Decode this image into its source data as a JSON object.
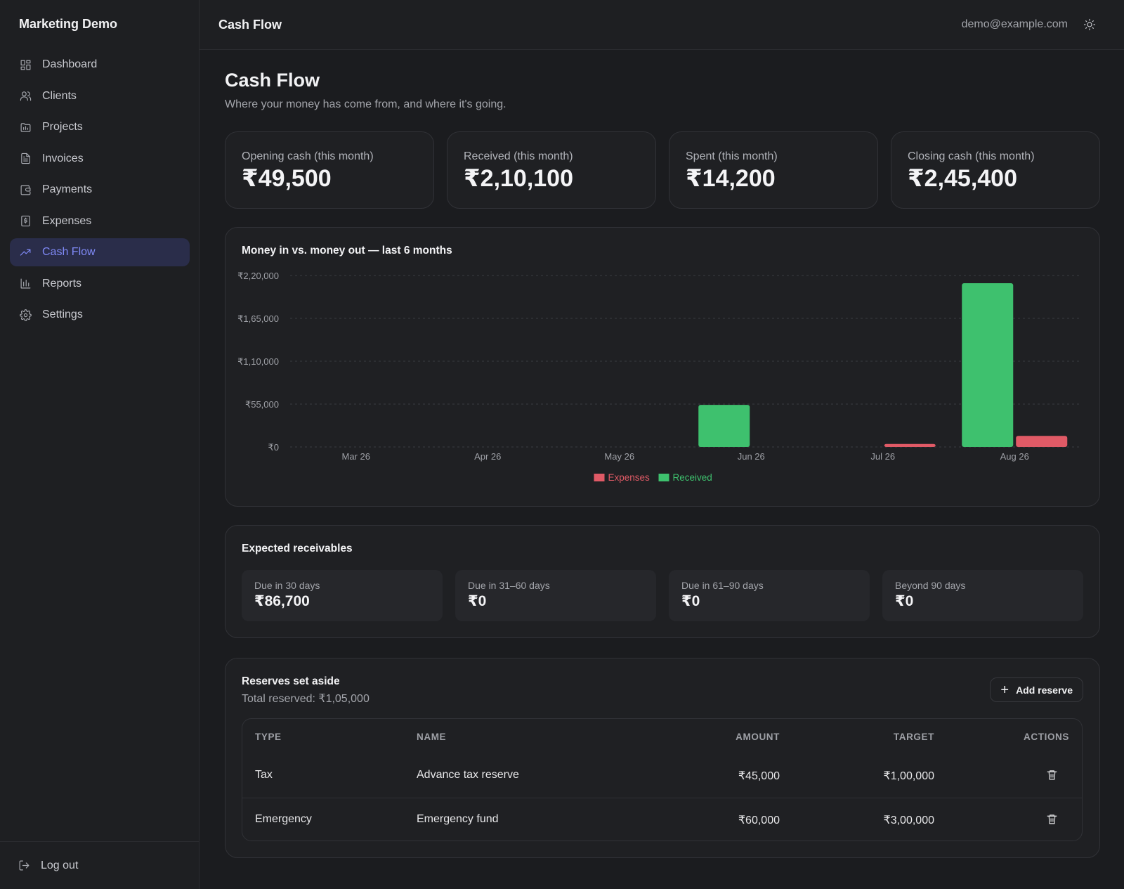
{
  "app": {
    "brand": "Marketing Demo"
  },
  "sidebar": {
    "items": [
      {
        "label": "Dashboard",
        "icon": "dashboard-icon"
      },
      {
        "label": "Clients",
        "icon": "users-icon"
      },
      {
        "label": "Projects",
        "icon": "folder-icon"
      },
      {
        "label": "Invoices",
        "icon": "file-text-icon"
      },
      {
        "label": "Payments",
        "icon": "wallet-icon"
      },
      {
        "label": "Expenses",
        "icon": "receipt-icon"
      },
      {
        "label": "Cash Flow",
        "icon": "trending-up-icon",
        "active": true
      },
      {
        "label": "Reports",
        "icon": "bar-chart-icon"
      },
      {
        "label": "Settings",
        "icon": "gear-icon"
      }
    ],
    "logout_label": "Log out"
  },
  "topbar": {
    "title": "Cash Flow",
    "email": "demo@example.com"
  },
  "page": {
    "title": "Cash Flow",
    "subtitle": "Where your money has come from, and where it's going."
  },
  "stats": [
    {
      "label": "Opening cash (this month)",
      "value": "₹49,500"
    },
    {
      "label": "Received (this month)",
      "value": "₹2,10,100"
    },
    {
      "label": "Spent (this month)",
      "value": "₹14,200"
    },
    {
      "label": "Closing cash (this month)",
      "value": "₹2,45,400"
    }
  ],
  "chart_data": {
    "type": "bar",
    "title": "Money in vs. money out — last 6 months",
    "categories": [
      "Mar 26",
      "Apr 26",
      "May 26",
      "Jun 26",
      "Jul 26",
      "Aug 26"
    ],
    "series": [
      {
        "name": "Expenses",
        "color": "#e05a66",
        "values": [
          0,
          0,
          0,
          0,
          3800,
          14200
        ]
      },
      {
        "name": "Received",
        "color": "#3ec16e",
        "values": [
          0,
          0,
          0,
          54000,
          0,
          210100
        ]
      }
    ],
    "y_ticks": [
      "₹0",
      "₹55,000",
      "₹1,10,000",
      "₹1,65,000",
      "₹2,20,000"
    ],
    "y_tick_values": [
      0,
      55000,
      110000,
      165000,
      220000
    ],
    "ylim": [
      0,
      220000
    ],
    "grid": true,
    "legend": "bottom-center"
  },
  "receivables": {
    "title": "Expected receivables",
    "buckets": [
      {
        "label": "Due in 30 days",
        "value": "₹86,700"
      },
      {
        "label": "Due in 31–60 days",
        "value": "₹0"
      },
      {
        "label": "Due in 61–90 days",
        "value": "₹0"
      },
      {
        "label": "Beyond 90 days",
        "value": "₹0"
      }
    ]
  },
  "reserves": {
    "title": "Reserves set aside",
    "total": "Total reserved: ₹1,05,000",
    "add_label": "Add reserve",
    "columns": {
      "type": "TYPE",
      "name": "NAME",
      "amount": "AMOUNT",
      "target": "TARGET",
      "actions": "ACTIONS"
    },
    "rows": [
      {
        "type": "Tax",
        "name": "Advance tax reserve",
        "amount": "₹45,000",
        "target": "₹1,00,000"
      },
      {
        "type": "Emergency",
        "name": "Emergency fund",
        "amount": "₹60,000",
        "target": "₹3,00,000"
      }
    ]
  }
}
